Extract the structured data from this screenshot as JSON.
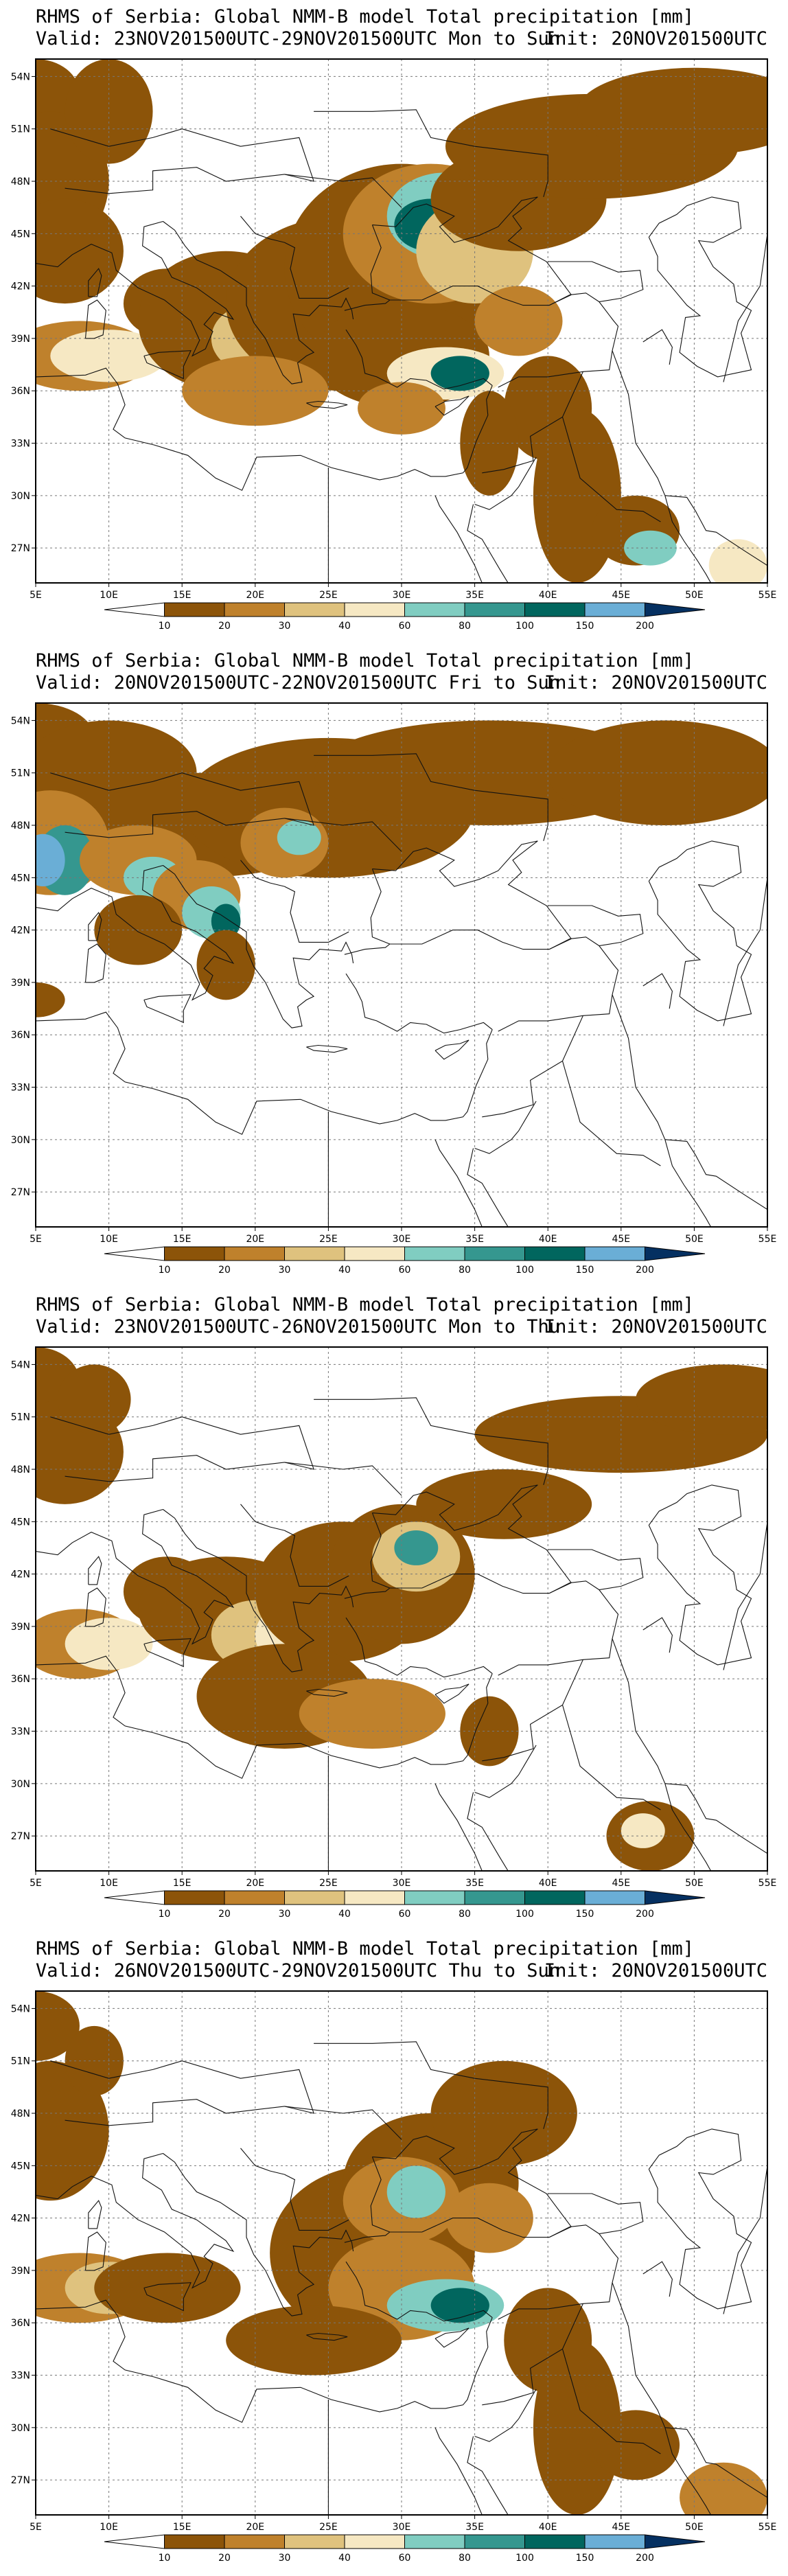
{
  "panels": [
    {
      "title": "RHMS of Serbia: Global NMM-B model Total precipitation [mm]",
      "valid": "Valid: 23NOV201500UTC-29NOV201500UTC Mon to Sun",
      "init": "Init: 20NOV201500UTC",
      "pattern": "week"
    },
    {
      "title": "RHMS of Serbia: Global NMM-B model Total precipitation [mm]",
      "valid": "Valid: 20NOV201500UTC-22NOV201500UTC Fri to Sun",
      "init": "Init: 20NOV201500UTC",
      "pattern": "weekend"
    },
    {
      "title": "RHMS of Serbia: Global NMM-B model Total precipitation [mm]",
      "valid": "Valid: 23NOV201500UTC-26NOV201500UTC Mon to Thu",
      "init": "Init: 20NOV201500UTC",
      "pattern": "early"
    },
    {
      "title": "RHMS of Serbia: Global NMM-B model Total precipitation [mm]",
      "valid": "Valid: 26NOV201500UTC-29NOV201500UTC Thu to Sun",
      "init": "Init: 20NOV201500UTC",
      "pattern": "late"
    }
  ],
  "map": {
    "lon_ticks": [
      "5E",
      "10E",
      "15E",
      "20E",
      "25E",
      "30E",
      "35E",
      "40E",
      "45E",
      "50E",
      "55E"
    ],
    "lat_ticks": [
      "54N",
      "51N",
      "48N",
      "45N",
      "42N",
      "39N",
      "36N",
      "33N",
      "30N",
      "27N"
    ],
    "lon_range": [
      5,
      55
    ],
    "lat_range": [
      25,
      55
    ]
  },
  "colorbar": {
    "labels": [
      "10",
      "20",
      "30",
      "40",
      "60",
      "80",
      "100",
      "150",
      "200"
    ],
    "colors": [
      "#8c5409",
      "#bf812c",
      "#dfc27e",
      "#f6e8c3",
      "#80cdc1",
      "#35978f",
      "#01665e",
      "#6aaed6",
      "#2166ac",
      "#053061"
    ]
  }
}
